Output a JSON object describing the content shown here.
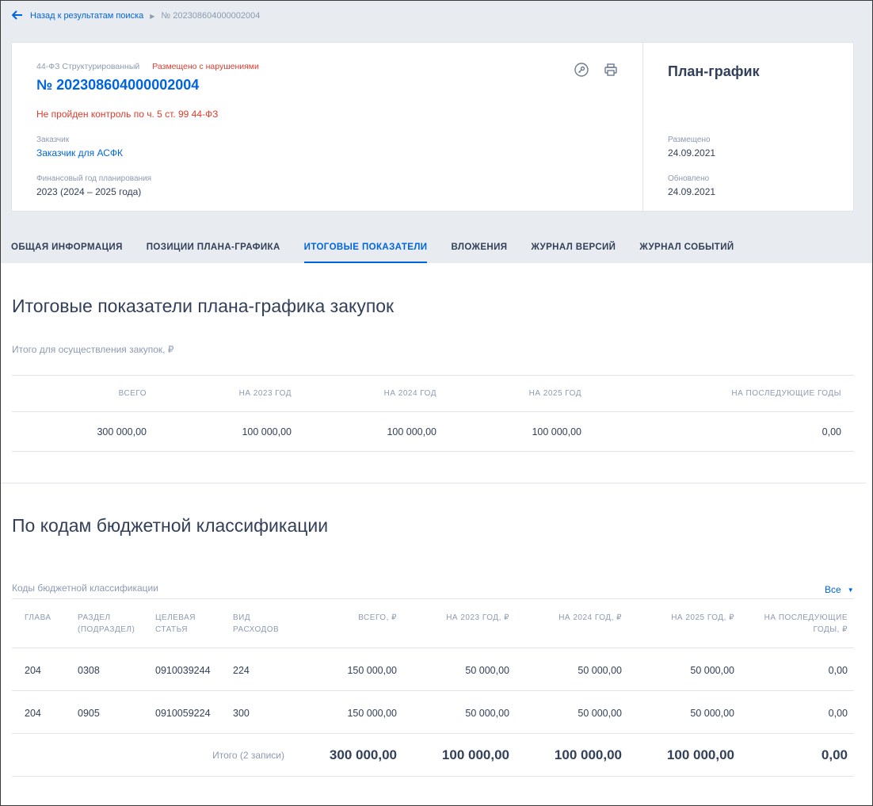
{
  "breadcrumb": {
    "back_label": "Назад к результатам поиска",
    "current": "№ 202308604000002004"
  },
  "card": {
    "law_type": "44-ФЗ Структурированный",
    "status": "Размещено с нарушениями",
    "number": "№ 202308604000002004",
    "warning": "Не пройден контроль по ч. 5 ст. 99 44-ФЗ",
    "customer_label": "Заказчик",
    "customer_value": "Заказчик для АСФК",
    "fin_year_label": "Финансовый год планирования",
    "fin_year_value": "2023 (2024 – 2025 года)",
    "side_title": "План-график",
    "placed_label": "Размещено",
    "placed_value": "24.09.2021",
    "updated_label": "Обновлено",
    "updated_value": "24.09.2021"
  },
  "tabs": [
    {
      "label": "Общая информация"
    },
    {
      "label": "Позиции плана-графика"
    },
    {
      "label": "Итоговые показатели"
    },
    {
      "label": "Вложения"
    },
    {
      "label": "Журнал версий"
    },
    {
      "label": "Журнал событий"
    }
  ],
  "totals_section": {
    "title": "Итоговые показатели плана-графика закупок",
    "subtitle": "Итого для осуществления закупок, ₽",
    "headers": [
      "Всего",
      "На 2023 год",
      "На 2024 год",
      "На 2025 год",
      "На последующие годы"
    ],
    "values": [
      "300 000,00",
      "100 000,00",
      "100 000,00",
      "100 000,00",
      "0,00"
    ]
  },
  "kbk_section": {
    "title": "По кодам бюджетной классификации",
    "subtitle": "Коды бюджетной классификации",
    "filter_value": "Все",
    "headers": {
      "chapter": "Глава",
      "section_1": "Раздел",
      "section_2": "(подраздел)",
      "target_1": "Целевая",
      "target_2": "статья",
      "kind_1": "Вид",
      "kind_2": "расходов",
      "total": "Всего, ₽",
      "y2023": "На 2023 год, ₽",
      "y2024": "На 2024 год, ₽",
      "y2025": "На 2025 год, ₽",
      "later_1": "На последующие",
      "later_2": "годы, ₽"
    },
    "rows": [
      {
        "chapter": "204",
        "section": "0308",
        "target": "0910039244",
        "kind": "224",
        "total": "150 000,00",
        "y2023": "50 000,00",
        "y2024": "50 000,00",
        "y2025": "50 000,00",
        "later": "0,00"
      },
      {
        "chapter": "204",
        "section": "0905",
        "target": "0910059224",
        "kind": "300",
        "total": "150 000,00",
        "y2023": "50 000,00",
        "y2024": "50 000,00",
        "y2025": "50 000,00",
        "later": "0,00"
      }
    ],
    "total_row": {
      "caption": "Итого (2 записи)",
      "total": "300 000,00",
      "y2023": "100 000,00",
      "y2024": "100 000,00",
      "y2025": "100 000,00",
      "later": "0,00"
    }
  }
}
